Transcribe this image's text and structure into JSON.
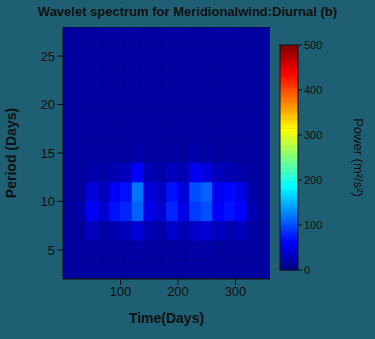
{
  "chart_data": {
    "type": "heatmap",
    "title": "Wavelet spectrum for Meridionalwind:Diurnal",
    "panel": "(b)",
    "x_label": "Time(Days)",
    "y_label": "Period (Days)",
    "xlim": [
      0,
      360
    ],
    "xticks": [
      100,
      200,
      300
    ],
    "ylim": [
      2,
      28
    ],
    "yticks": [
      5,
      10,
      15,
      20,
      25
    ],
    "x_edges": [
      0,
      20,
      40,
      60,
      80,
      100,
      120,
      140,
      160,
      180,
      200,
      220,
      240,
      260,
      280,
      300,
      320,
      340,
      360
    ],
    "y_edges": [
      2,
      4,
      6,
      8,
      10,
      12,
      14,
      16,
      18,
      20,
      22,
      24,
      26,
      28
    ],
    "cells": [
      [
        15,
        15,
        15,
        15,
        15,
        15,
        15,
        15,
        15,
        15,
        15,
        15,
        15,
        15,
        15,
        15,
        15,
        15
      ],
      [
        15,
        15,
        15,
        15,
        15,
        15,
        18,
        15,
        15,
        15,
        15,
        18,
        18,
        15,
        15,
        15,
        15,
        15
      ],
      [
        15,
        15,
        30,
        20,
        25,
        30,
        40,
        25,
        20,
        35,
        25,
        35,
        40,
        30,
        25,
        30,
        15,
        15
      ],
      [
        15,
        20,
        60,
        40,
        70,
        80,
        110,
        50,
        40,
        80,
        50,
        90,
        100,
        60,
        70,
        60,
        25,
        15
      ],
      [
        15,
        15,
        45,
        30,
        60,
        70,
        120,
        45,
        35,
        70,
        45,
        100,
        110,
        55,
        65,
        50,
        20,
        15
      ],
      [
        15,
        15,
        20,
        20,
        25,
        30,
        60,
        25,
        20,
        30,
        25,
        55,
        45,
        30,
        25,
        20,
        15,
        15
      ],
      [
        15,
        15,
        15,
        15,
        15,
        15,
        20,
        15,
        15,
        15,
        15,
        20,
        18,
        15,
        15,
        15,
        15,
        15
      ],
      [
        15,
        15,
        15,
        15,
        15,
        15,
        15,
        15,
        15,
        15,
        15,
        15,
        15,
        15,
        15,
        15,
        15,
        15
      ],
      [
        15,
        15,
        15,
        15,
        15,
        15,
        15,
        15,
        15,
        15,
        15,
        15,
        15,
        15,
        15,
        15,
        15,
        15
      ],
      [
        15,
        15,
        15,
        15,
        15,
        15,
        15,
        15,
        15,
        15,
        15,
        15,
        15,
        15,
        15,
        15,
        15,
        15
      ],
      [
        15,
        15,
        15,
        15,
        15,
        15,
        15,
        15,
        15,
        15,
        15,
        15,
        15,
        15,
        15,
        15,
        15,
        15
      ],
      [
        15,
        15,
        15,
        15,
        15,
        15,
        15,
        15,
        15,
        15,
        15,
        15,
        15,
        15,
        15,
        15,
        15,
        15
      ],
      [
        15,
        15,
        15,
        15,
        15,
        15,
        15,
        15,
        15,
        15,
        15,
        15,
        15,
        15,
        15,
        15,
        15,
        15
      ]
    ],
    "colorbar": {
      "range": [
        0,
        500
      ],
      "ticks": [
        0,
        100,
        200,
        300,
        400,
        500
      ],
      "label": "Power (m²/s²)"
    }
  }
}
